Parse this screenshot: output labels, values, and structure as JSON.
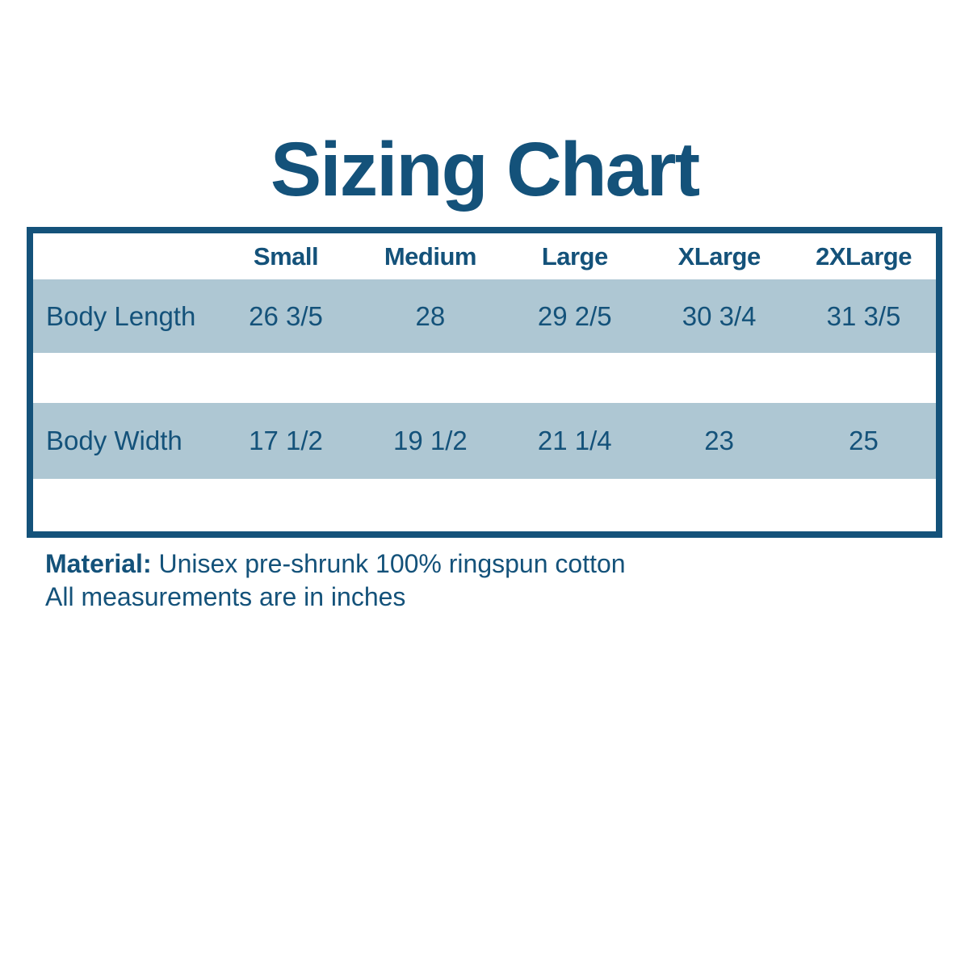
{
  "page": {
    "title": "Sizing Chart"
  },
  "colors": {
    "accent": "#14527a",
    "stripe": "#aec7d3",
    "background": "#ffffff"
  },
  "table": {
    "corner_label": "",
    "columns": [
      "Small",
      "Medium",
      "Large",
      "XLarge",
      "2XLarge"
    ],
    "rows": [
      {
        "label": "Body Length",
        "values": [
          "26 3/5",
          "28",
          "29 2/5",
          "30 3/4",
          "31 3/5"
        ]
      },
      {
        "label": "Body Width",
        "values": [
          "17 1/2",
          "19 1/2",
          "21 1/4",
          "23",
          "25"
        ]
      }
    ]
  },
  "footer": {
    "material_label": "Material:",
    "material_value": "Unisex pre-shrunk 100% ringspun cotton",
    "note": "All measurements are in inches"
  },
  "chart_data": {
    "type": "table",
    "title": "Sizing Chart",
    "columns": [
      "",
      "Small",
      "Medium",
      "Large",
      "XLarge",
      "2XLarge"
    ],
    "rows": [
      [
        "Body Length",
        "26 3/5",
        "28",
        "29 2/5",
        "30 3/4",
        "31 3/5"
      ],
      [
        "Body Width",
        "17 1/2",
        "19 1/2",
        "21 1/4",
        "23",
        "25"
      ]
    ],
    "units": "inches",
    "notes": [
      "Material: Unisex pre-shrunk 100% ringspun cotton",
      "All measurements are in inches"
    ]
  }
}
